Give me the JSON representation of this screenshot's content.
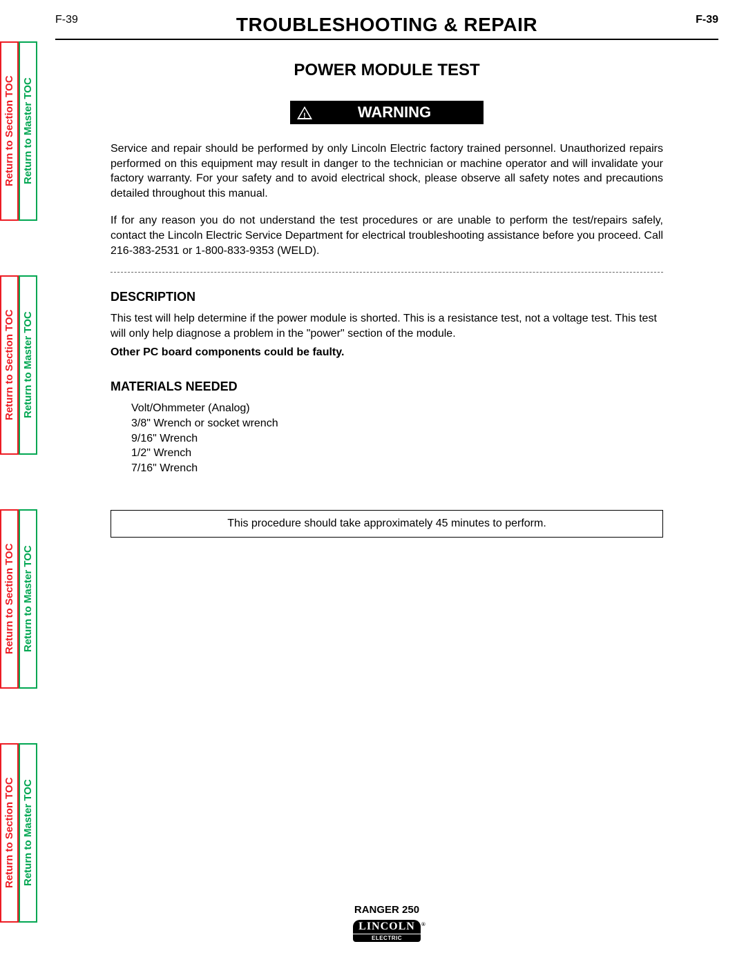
{
  "page_number_left": "F-39",
  "page_number_right": "F-39",
  "header_title": "TROUBLESHOOTING & REPAIR",
  "section_title": "POWER MODULE TEST",
  "warning_label": "WARNING",
  "warning_para_1": "Service and repair should be performed by only Lincoln Electric factory trained personnel. Unauthorized repairs performed on this equipment may result in danger to the technician or machine operator and will invalidate your factory warranty.  For your safety and to avoid electrical shock, please observe all safety notes and precautions detailed throughout this manual.",
  "warning_para_2": "If for any reason you do not understand the test procedures or are unable to perform the test/repairs safely, contact the Lincoln Electric Service Department for electrical troubleshooting assistance before you proceed.  Call 216-383-2531 or 1-800-833-9353 (WELD).",
  "description_heading": "DESCRIPTION",
  "description_text": "This test will help determine if the power module is shorted.  This is a resistance test, not a voltage test.  This test will only help diagnose a problem in the \"power\" section of the module.",
  "description_bold": "Other PC board components could be faulty.",
  "materials_heading": "MATERIALS NEEDED",
  "materials": {
    "item1": "Volt/Ohmmeter (Analog)",
    "item2": "3/8\" Wrench or socket wrench",
    "item3": "9/16\" Wrench",
    "item4": "1/2\" Wrench",
    "item5": "7/16\" Wrench"
  },
  "time_note": "This procedure should take approximately 45 minutes to perform.",
  "footer_model": "RANGER 250",
  "logo_top": "LINCOLN",
  "logo_bottom": "ELECTRIC",
  "side_tabs": {
    "section": "Return to Section TOC",
    "master": "Return to Master TOC"
  },
  "colors": {
    "red": "#ed1c24",
    "green": "#00a651",
    "black": "#000000",
    "white": "#ffffff"
  }
}
